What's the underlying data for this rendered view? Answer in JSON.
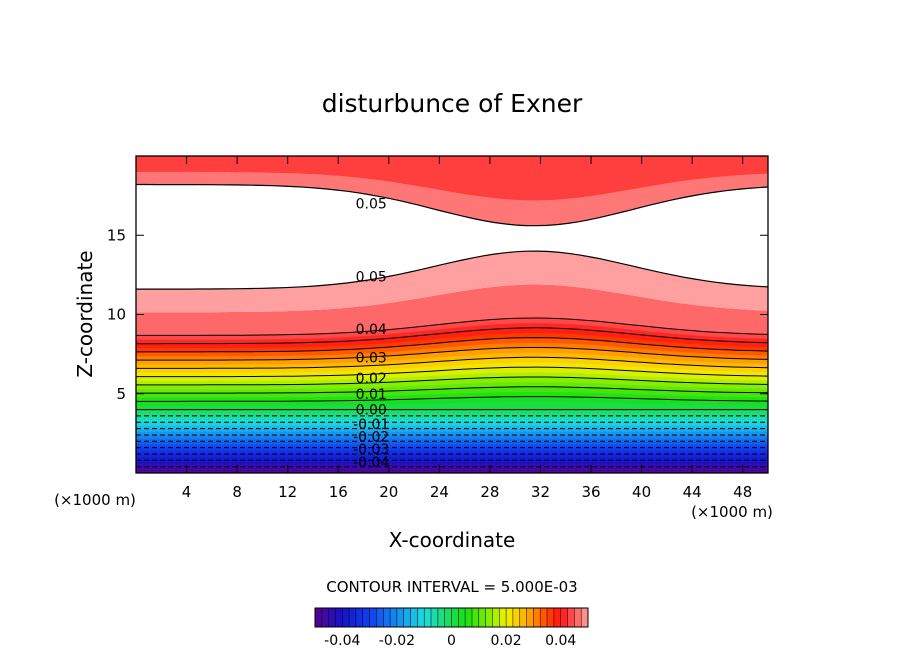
{
  "chart_data": {
    "type": "contour",
    "title": "disturbunce of Exner",
    "xlabel": "X-coordinate",
    "ylabel": "Z-coordinate",
    "x_unit": "(×1000 m)",
    "y_unit": "(×1000 m)",
    "xlim": [
      0,
      50
    ],
    "ylim": [
      0,
      20
    ],
    "xticks": [
      4,
      8,
      12,
      16,
      20,
      24,
      28,
      32,
      36,
      40,
      44,
      48
    ],
    "yticks": [
      5,
      10,
      15
    ],
    "contour_interval_text": "CONTOUR INTERVAL = 5.000E-03",
    "contour_interval": 0.005,
    "colorbar": {
      "range": [
        -0.05,
        0.05
      ],
      "ticks": [
        -0.04,
        -0.02,
        0,
        0.02,
        0.04
      ],
      "tick_labels": [
        "-0.04",
        "-0.02",
        "0",
        "0.02",
        "0.04"
      ]
    },
    "contour_labels": [
      {
        "text": "0.05",
        "x": 17.5,
        "z": 17.0
      },
      {
        "text": "0.05",
        "x": 17.5,
        "z": 12.4
      },
      {
        "text": "0.04",
        "x": 17.5,
        "z": 9.1
      },
      {
        "text": "0.03",
        "x": 17.5,
        "z": 7.3
      },
      {
        "text": "0.02",
        "x": 17.5,
        "z": 6.0
      },
      {
        "text": "0.01",
        "x": 17.5,
        "z": 5.0
      },
      {
        "text": "0.00",
        "x": 17.5,
        "z": 4.0
      },
      {
        "text": "-0.01",
        "x": 17.5,
        "z": 3.1
      },
      {
        "text": "-0.02",
        "x": 17.5,
        "z": 2.3
      },
      {
        "text": "-0.03",
        "x": 17.5,
        "z": 1.5
      },
      {
        "text": "-0.04",
        "x": 17.5,
        "z": 0.7
      }
    ],
    "colors": {
      "negative_min": "#5a0090",
      "blue": "#1020e0",
      "cyan": "#20e0e0",
      "green": "#10e010",
      "yellow": "#f0f000",
      "orange": "#ff9000",
      "red": "#ff1010",
      "pink": "#ffa0a0",
      "missing": "#ffffff"
    }
  }
}
